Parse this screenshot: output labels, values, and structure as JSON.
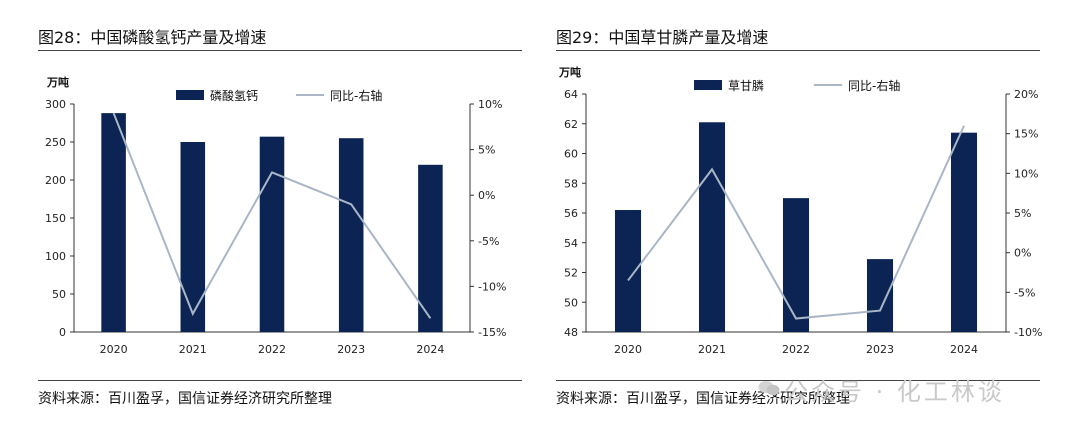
{
  "panels": [
    {
      "title": "图28：中国磷酸氢钙产量及增速",
      "source": "资料来源：百川盈孚，国信证券经济研究所整理"
    },
    {
      "title": "图29：中国草甘膦产量及增速",
      "source": "资料来源：百川盈孚，国信证券经济研究所整理"
    }
  ],
  "watermark": "公众号 · 化工林谈",
  "colors": {
    "bar": "#0c2454",
    "line": "#a9b6c7",
    "axis": "#333333"
  },
  "chart_data": [
    {
      "type": "bar",
      "title": "图28：中国磷酸氢钙产量及增速",
      "unit": "万吨",
      "categories": [
        "2020",
        "2021",
        "2022",
        "2023",
        "2024"
      ],
      "series": [
        {
          "name": "磷酸氢钙",
          "type": "bar",
          "axis": "left",
          "values": [
            288,
            250,
            257,
            255,
            220
          ]
        },
        {
          "name": "同比-右轴",
          "type": "line",
          "axis": "right",
          "values": [
            9.0,
            -13.0,
            2.5,
            -1.0,
            -13.5
          ]
        }
      ],
      "ylim": [
        0,
        300
      ],
      "yticks": [
        0,
        50,
        100,
        150,
        200,
        250,
        300
      ],
      "y2lim": [
        -15,
        10
      ],
      "y2ticks": [
        -15,
        -10,
        -5,
        0,
        5,
        10
      ],
      "y2tick_labels": [
        "-15%",
        "-10%",
        "-5%",
        "0%",
        "5%",
        "10%"
      ],
      "legend_position": "top"
    },
    {
      "type": "bar",
      "title": "图29：中国草甘膦产量及增速",
      "unit": "万吨",
      "categories": [
        "2020",
        "2021",
        "2022",
        "2023",
        "2024"
      ],
      "series": [
        {
          "name": "草甘膦",
          "type": "bar",
          "axis": "left",
          "values": [
            56.2,
            62.1,
            57.0,
            52.9,
            61.4
          ]
        },
        {
          "name": "同比-右轴",
          "type": "line",
          "axis": "right",
          "values": [
            -3.5,
            10.5,
            -8.3,
            -7.3,
            16.0
          ]
        }
      ],
      "ylim": [
        48,
        64
      ],
      "yticks": [
        48,
        50,
        52,
        54,
        56,
        58,
        60,
        62,
        64
      ],
      "y2lim": [
        -10,
        20
      ],
      "y2ticks": [
        -10,
        -5,
        0,
        5,
        10,
        15,
        20
      ],
      "y2tick_labels": [
        "-10%",
        "-5%",
        "0%",
        "5%",
        "10%",
        "15%",
        "20%"
      ],
      "legend_position": "top"
    }
  ]
}
